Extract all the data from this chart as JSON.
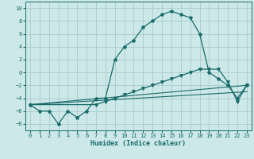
{
  "xlabel": "Humidex (Indice chaleur)",
  "bg_color": "#cce8e8",
  "grid_color": "#aacccc",
  "line_color": "#1a6b6b",
  "xlim": [
    -0.5,
    23.5
  ],
  "ylim": [
    -9,
    11
  ],
  "xticks": [
    0,
    1,
    2,
    3,
    4,
    5,
    6,
    7,
    8,
    9,
    10,
    11,
    12,
    13,
    14,
    15,
    16,
    17,
    18,
    19,
    20,
    21,
    22,
    23
  ],
  "yticks": [
    -8,
    -6,
    -4,
    -2,
    0,
    2,
    4,
    6,
    8,
    10
  ],
  "series1_x": [
    0,
    1,
    2,
    3,
    4,
    5,
    6,
    7,
    8,
    9,
    10,
    11,
    12,
    13,
    14,
    15,
    16,
    17,
    18,
    19,
    20,
    21,
    22,
    23
  ],
  "series1_y": [
    -5,
    -6,
    -6,
    -8,
    -6,
    -7,
    -6,
    -4,
    -4,
    2,
    4,
    5,
    7,
    8,
    9,
    9.5,
    9,
    8.5,
    6,
    0,
    -1,
    -2,
    -4,
    -2
  ],
  "series2_x": [
    0,
    7,
    8,
    9,
    10,
    11,
    12,
    13,
    14,
    15,
    16,
    17,
    18,
    19,
    20,
    21,
    22,
    23
  ],
  "series2_y": [
    -5,
    -5,
    -4.5,
    -4,
    -3.5,
    -3,
    -2.5,
    -2,
    -1.5,
    -1,
    -0.5,
    0,
    0.5,
    0.5,
    0.5,
    -1.5,
    -4.5,
    -2
  ],
  "series3_x": [
    0,
    23
  ],
  "series3_y": [
    -5,
    -3
  ],
  "series4_x": [
    0,
    23
  ],
  "series4_y": [
    -5,
    -2
  ]
}
